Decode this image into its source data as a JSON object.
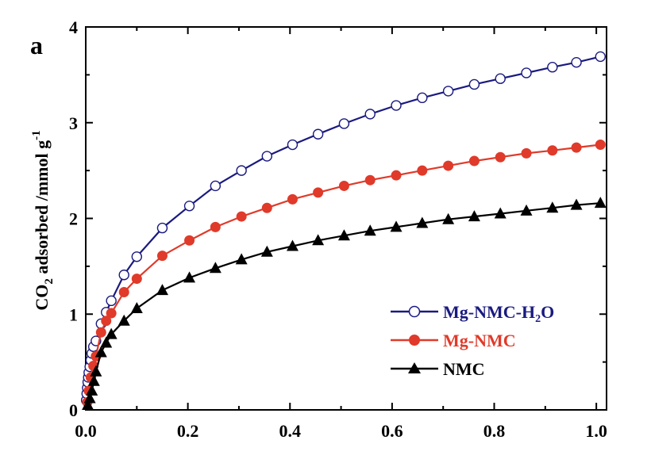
{
  "chart_data": {
    "type": "line",
    "panel_label": "a",
    "ylabel_parts": [
      "CO",
      "2",
      " adsorbed /mmol g",
      "-1"
    ],
    "xlim": [
      0,
      1.02
    ],
    "ylim": [
      0,
      4
    ],
    "xticks": [
      0.0,
      0.2,
      0.4,
      0.6,
      0.8,
      1.0
    ],
    "xtick_labels": [
      "0.0",
      "0.2",
      "0.4",
      "0.6",
      "0.8",
      "1.0"
    ],
    "yticks": [
      0,
      1,
      2,
      3,
      4
    ],
    "ytick_labels": [
      "0",
      "1",
      "2",
      "3",
      "4"
    ],
    "grid": false,
    "legend_position": "lower-right",
    "series": [
      {
        "name_parts": [
          "Mg-NMC-H",
          "2",
          "O"
        ],
        "color": "#1a1a80",
        "marker": "open-circle",
        "x": [
          0.001,
          0.002,
          0.003,
          0.004,
          0.005,
          0.006,
          0.008,
          0.01,
          0.012,
          0.015,
          0.02,
          0.03,
          0.04,
          0.05,
          0.075,
          0.1,
          0.15,
          0.203,
          0.254,
          0.305,
          0.355,
          0.405,
          0.455,
          0.506,
          0.557,
          0.608,
          0.659,
          0.71,
          0.761,
          0.812,
          0.863,
          0.914,
          0.961,
          1.008
        ],
        "y": [
          0.1,
          0.17,
          0.23,
          0.29,
          0.34,
          0.39,
          0.45,
          0.52,
          0.59,
          0.66,
          0.72,
          0.9,
          1.02,
          1.14,
          1.41,
          1.6,
          1.9,
          2.13,
          2.34,
          2.5,
          2.65,
          2.77,
          2.88,
          2.99,
          3.09,
          3.18,
          3.26,
          3.33,
          3.4,
          3.46,
          3.52,
          3.58,
          3.63,
          3.69
        ]
      },
      {
        "name": "Mg-NMC",
        "color": "#e03a2a",
        "marker": "filled-circle",
        "x": [
          0.003,
          0.006,
          0.01,
          0.015,
          0.02,
          0.03,
          0.04,
          0.05,
          0.075,
          0.1,
          0.15,
          0.203,
          0.254,
          0.305,
          0.355,
          0.405,
          0.455,
          0.506,
          0.557,
          0.608,
          0.659,
          0.71,
          0.761,
          0.812,
          0.863,
          0.914,
          0.961,
          1.008
        ],
        "y": [
          0.08,
          0.2,
          0.34,
          0.46,
          0.56,
          0.81,
          0.93,
          1.01,
          1.23,
          1.37,
          1.61,
          1.77,
          1.91,
          2.02,
          2.11,
          2.2,
          2.27,
          2.34,
          2.4,
          2.45,
          2.5,
          2.55,
          2.6,
          2.64,
          2.68,
          2.71,
          2.74,
          2.77
        ]
      },
      {
        "name": "NMC",
        "color": "#000000",
        "marker": "filled-triangle",
        "x": [
          0.004,
          0.008,
          0.012,
          0.016,
          0.02,
          0.03,
          0.04,
          0.05,
          0.075,
          0.1,
          0.15,
          0.203,
          0.254,
          0.305,
          0.355,
          0.405,
          0.455,
          0.506,
          0.557,
          0.608,
          0.659,
          0.71,
          0.761,
          0.812,
          0.863,
          0.914,
          0.961,
          1.008
        ],
        "y": [
          0.05,
          0.12,
          0.2,
          0.3,
          0.4,
          0.6,
          0.7,
          0.79,
          0.93,
          1.06,
          1.25,
          1.38,
          1.48,
          1.57,
          1.65,
          1.71,
          1.77,
          1.82,
          1.87,
          1.91,
          1.95,
          1.99,
          2.02,
          2.05,
          2.08,
          2.11,
          2.14,
          2.16
        ]
      }
    ]
  }
}
